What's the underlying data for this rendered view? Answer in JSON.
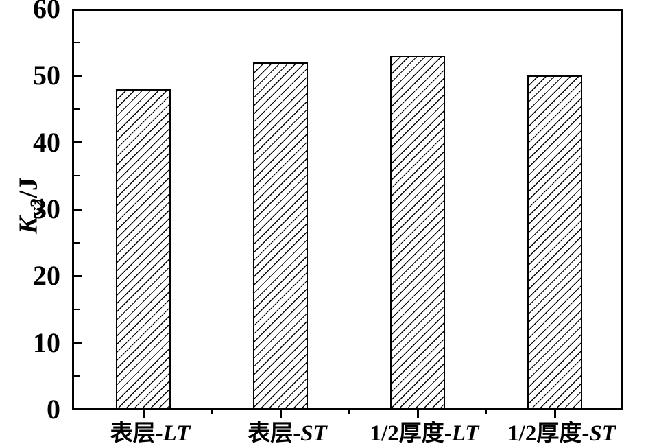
{
  "chart_data": {
    "type": "bar",
    "title": "",
    "xlabel": "",
    "ylabel": "Kv2/J",
    "ylabel_parts": {
      "symbol": "K",
      "subscript": "v2",
      "unit": "/J"
    },
    "ylim": [
      0,
      60
    ],
    "yticks": [
      0,
      10,
      20,
      30,
      40,
      50,
      60
    ],
    "y_major_step": 10,
    "y_minor_step": 5,
    "grid": false,
    "legend": "none",
    "categories": [
      "表层-LT",
      "表层-ST",
      "1/2厚度-LT",
      "1/2厚度-ST"
    ],
    "categories_rich": [
      {
        "prefix": "表层-",
        "italic": "LT"
      },
      {
        "prefix": "表层-",
        "italic": "ST"
      },
      {
        "prefix": "1/2厚度-",
        "italic": "LT"
      },
      {
        "prefix": "1/2厚度-",
        "italic": "ST"
      }
    ],
    "values": [
      48,
      52,
      53,
      50
    ],
    "bar_style": {
      "fill": "#ffffff",
      "edge_color": "#000000",
      "hatch": "forward-diagonal"
    },
    "tick_style": {
      "y": "inward",
      "x": "outward"
    },
    "colors": {
      "axis": "#000000",
      "background": "#ffffff",
      "text": "#000000"
    }
  }
}
